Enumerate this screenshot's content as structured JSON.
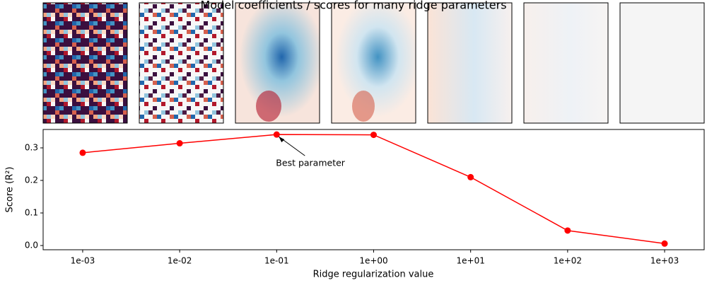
{
  "chart_data": {
    "type": "line",
    "title": "Model coefficients / scores for many ridge parameters",
    "x_label": "Ridge regularization value",
    "y_label": "Score (R²)",
    "x": [
      0.001,
      0.01,
      0.1,
      1,
      10,
      100,
      1000
    ],
    "series": [
      {
        "name": "Score",
        "color": "#ff0000",
        "values": [
          0.285,
          0.314,
          0.341,
          0.34,
          0.21,
          0.046,
          0.006
        ]
      }
    ],
    "xscale": "log",
    "xlim": [
      0.000391,
      2558
    ],
    "xticks": [
      {
        "value": 0.001,
        "label": "1e-03"
      },
      {
        "value": 0.01,
        "label": "1e-02"
      },
      {
        "value": 0.1,
        "label": "1e-01"
      },
      {
        "value": 1,
        "label": "1e+00"
      },
      {
        "value": 10,
        "label": "1e+01"
      },
      {
        "value": 100,
        "label": "1e+02"
      },
      {
        "value": 1000,
        "label": "1e+03"
      }
    ],
    "ylim": [
      -0.013,
      0.3565
    ],
    "yticks": [
      {
        "value": 0,
        "label": "0.0"
      },
      0.1,
      0.2,
      0.3
    ],
    "grid": false,
    "annotation": "Best parameter"
  }
}
